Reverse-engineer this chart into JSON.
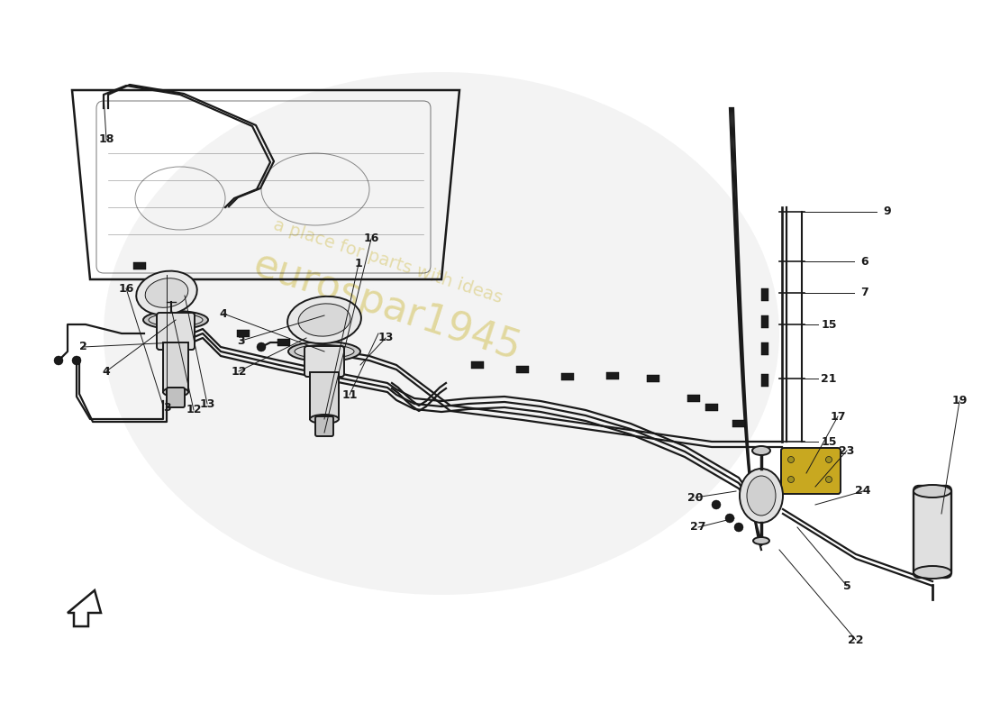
{
  "bg_color": "#ffffff",
  "c": "#1a1a1a",
  "lw": 1.4,
  "watermark_yellow": "#c8b020",
  "watermark_gray": "#b0b0b0",
  "fs": 9,
  "fw": "bold"
}
